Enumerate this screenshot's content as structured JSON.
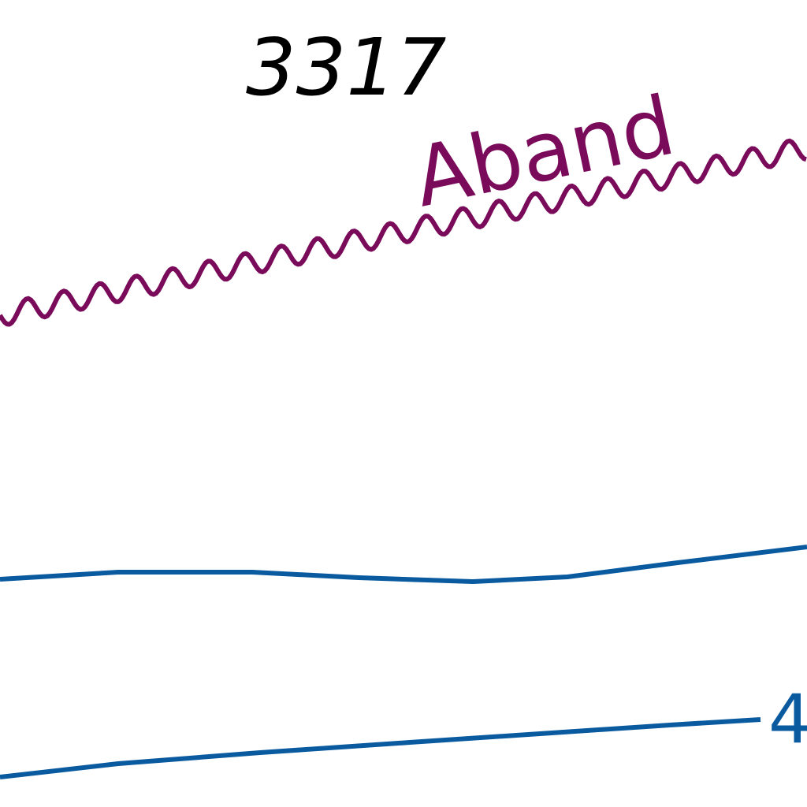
{
  "map": {
    "labels": {
      "elevation": "3317",
      "place_name": "Aband",
      "road_number": "4"
    },
    "colors": {
      "background": "#ffffff",
      "elevation_text": "#000000",
      "ridge_line": "#7a0a5a",
      "place_name_text": "#7a0a5a",
      "road_line": "#0a5aa0",
      "road_number_text": "#0a5aa0"
    },
    "features": [
      "wavy-ridge-line",
      "upper-road-line",
      "lower-road-line"
    ]
  }
}
